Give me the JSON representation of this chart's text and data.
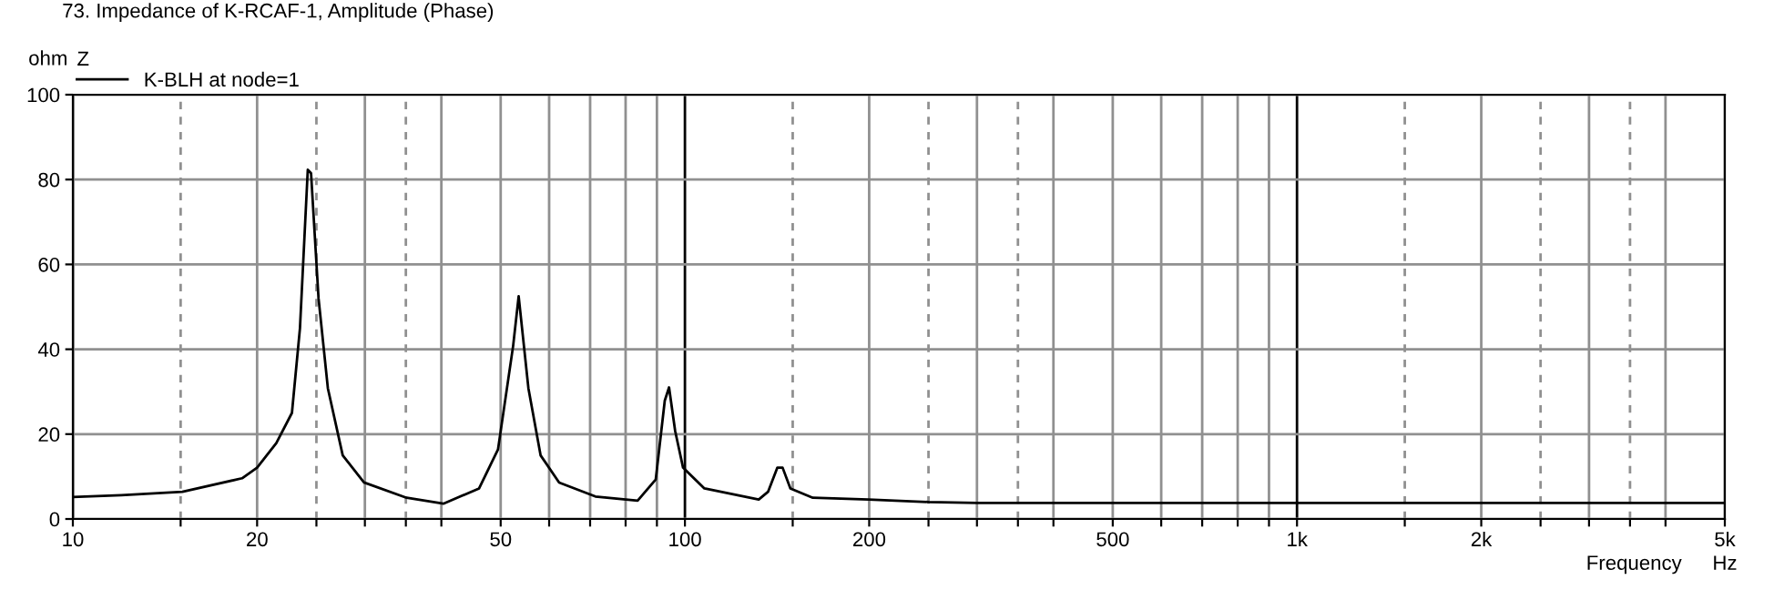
{
  "chart_data": {
    "type": "line",
    "title": "73. Impedance of K-RCAF-1, Amplitude (Phase)",
    "xlabel": "Frequency",
    "ylabel": "ohm",
    "legend_title": "Z",
    "annotations": [
      "Hz"
    ],
    "series": [
      {
        "name": "K-BLH at node=1",
        "color": "#000000",
        "x": [
          10,
          12,
          15.1,
          18.9,
          20,
          21.5,
          22.8,
          23.5,
          24.2,
          24.5,
          25.2,
          26.1,
          27.6,
          29.9,
          35.1,
          40.3,
          46.1,
          49.5,
          52.4,
          53.5,
          55.5,
          58.1,
          62.3,
          71.4,
          83.7,
          89.6,
          92.7,
          94.2,
          96.4,
          99.3,
          107.6,
          132,
          136.7,
          141.6,
          144.4,
          148.7,
          161.8,
          199.5,
          250,
          300,
          1000,
          5000
        ],
        "values": [
          5.2,
          5.6,
          6.4,
          9.6,
          12.1,
          17.9,
          25,
          45,
          82.3,
          81.5,
          52,
          30.8,
          15,
          8.6,
          5.0,
          3.6,
          7.2,
          16.4,
          40.8,
          52.5,
          30.8,
          15,
          8.6,
          5.3,
          4.3,
          9.3,
          27.9,
          31,
          20.7,
          12.1,
          7.2,
          4.6,
          6.4,
          12.1,
          12.1,
          7.2,
          5.0,
          4.6,
          4.0,
          3.8,
          3.8,
          3.8
        ]
      }
    ],
    "xlim": [
      10,
      5000
    ],
    "ylim": [
      0,
      100
    ],
    "log": "x",
    "xticks": [
      10,
      {
        "value": 15,
        "label": null
      },
      20,
      {
        "value": 25,
        "label": null
      },
      {
        "value": 30,
        "label": null
      },
      {
        "value": 35,
        "label": null
      },
      {
        "value": 40,
        "label": null
      },
      50,
      {
        "value": 60,
        "label": null
      },
      {
        "value": 70,
        "label": null
      },
      {
        "value": 80,
        "label": null
      },
      {
        "value": 90,
        "label": null
      },
      100,
      {
        "value": 150,
        "label": null
      },
      200,
      {
        "value": 250,
        "label": null
      },
      {
        "value": 300,
        "label": null
      },
      {
        "value": 350,
        "label": null
      },
      {
        "value": 400,
        "label": null
      },
      500,
      {
        "value": 600,
        "label": null
      },
      {
        "value": 700,
        "label": null
      },
      {
        "value": 800,
        "label": null
      },
      {
        "value": 900,
        "label": null
      },
      {
        "value": 1000,
        "label": "1k"
      },
      {
        "value": 1500,
        "label": null
      },
      {
        "value": 2000,
        "label": "2k"
      },
      {
        "value": 2500,
        "label": null
      },
      {
        "value": 3000,
        "label": null
      },
      {
        "value": 3500,
        "label": null
      },
      {
        "value": 4000,
        "label": null
      },
      {
        "value": 5000,
        "label": "5k"
      }
    ],
    "yticks": [
      0,
      20,
      40,
      60,
      80,
      100
    ],
    "grid": true,
    "legend": "top left",
    "marker": "none",
    "line_style": "solid"
  }
}
